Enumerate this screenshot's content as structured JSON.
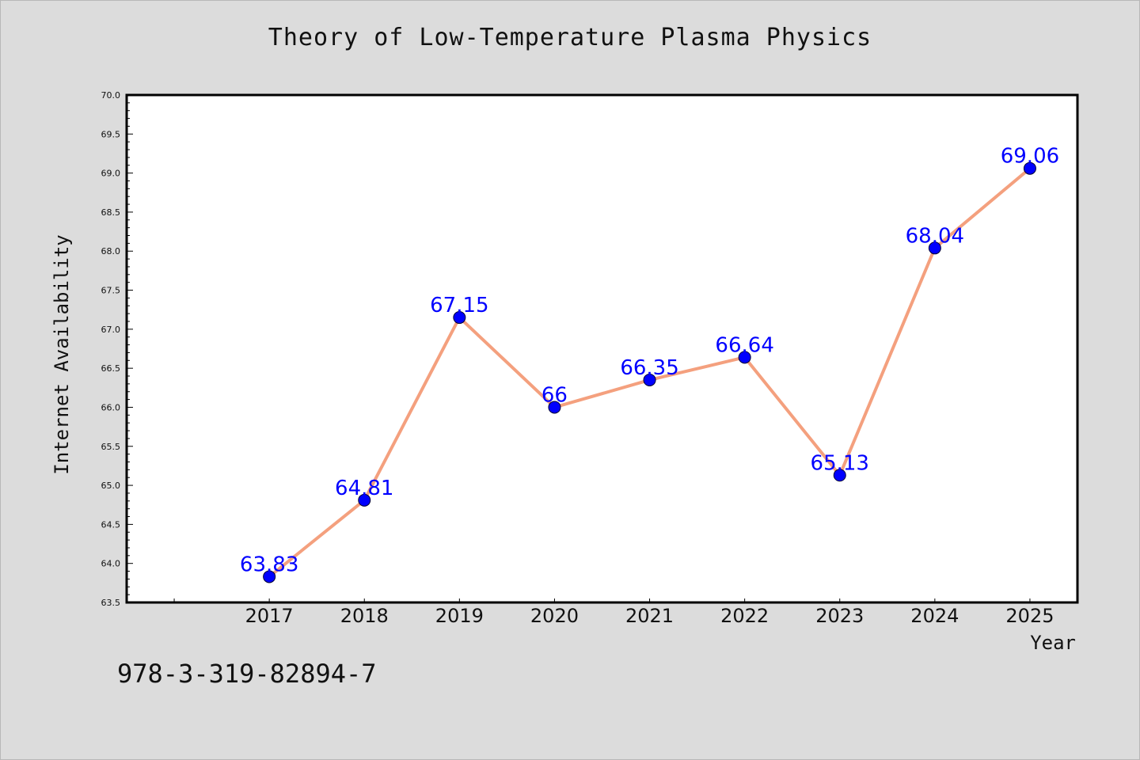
{
  "page": {
    "title": "Theory of Low-Temperature Plasma Physics",
    "isbn": "978-3-319-82894-7"
  },
  "colors": {
    "background": "#dcdcdc",
    "plot_background": "#ffffff",
    "line": "#f4a07e",
    "marker": "#0000ff",
    "data_label": "#0000ff",
    "axis": "#000000"
  },
  "chart_data": {
    "type": "line",
    "title": "Theory of Low-Temperature Plasma Physics",
    "xlabel": "Year",
    "ylabel": "Internet Availability",
    "categories": [
      "2017",
      "2018",
      "2019",
      "2020",
      "2021",
      "2022",
      "2023",
      "2024",
      "2025"
    ],
    "x": [
      2017,
      2018,
      2019,
      2020,
      2021,
      2022,
      2023,
      2024,
      2025
    ],
    "values": [
      63.83,
      64.81,
      67.15,
      66,
      66.35,
      66.64,
      65.13,
      68.04,
      69.06
    ],
    "data_labels": [
      "63.83",
      "64.81",
      "67.15",
      "66",
      "66.35",
      "66.64",
      "65.13",
      "68.04",
      "69.06"
    ],
    "xlim": [
      2015.5,
      2025.5
    ],
    "ylim": [
      63.5,
      70.0
    ],
    "yticks": [
      "63.5",
      "64.0",
      "64.5",
      "65.0",
      "65.5",
      "66.0",
      "66.5",
      "67.0",
      "67.5",
      "68.0",
      "68.5",
      "69.0",
      "69.5",
      "70.0"
    ],
    "grid": false,
    "legend": "none",
    "markers": true
  }
}
